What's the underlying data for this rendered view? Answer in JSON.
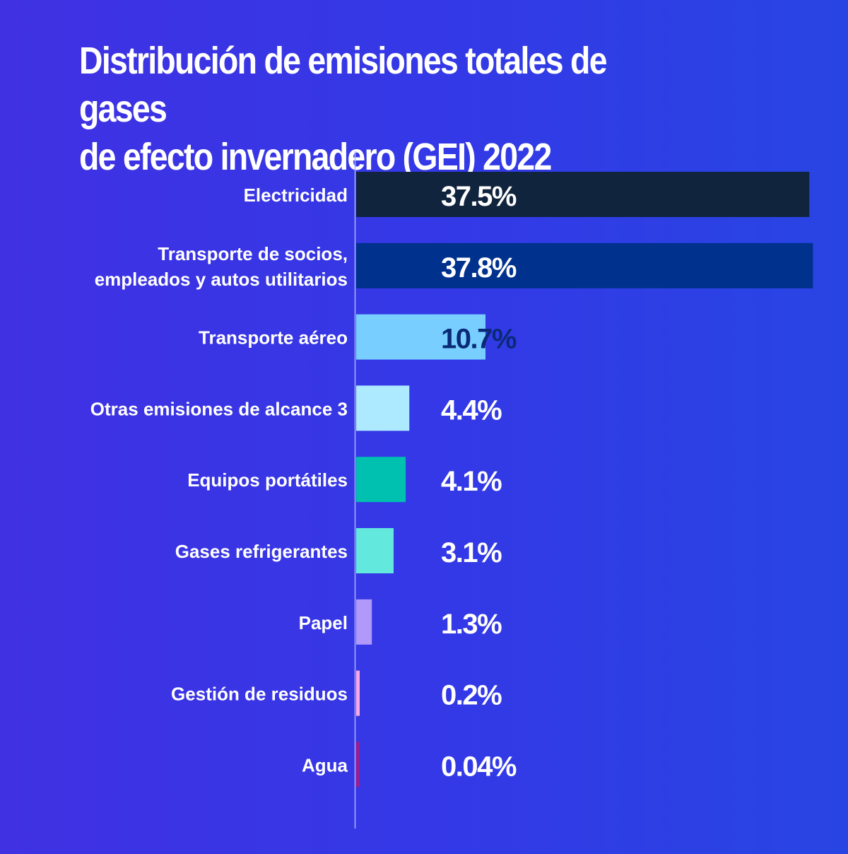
{
  "chart_data": {
    "type": "bar",
    "orientation": "horizontal",
    "title_lines": [
      "Distribución de emisiones totales de gases",
      "de efecto invernadero (GEI) 2022"
    ],
    "categories": [
      [
        "Electricidad"
      ],
      [
        "Transporte de socios,",
        "empleados y autos utilitarios"
      ],
      [
        "Transporte aéreo"
      ],
      [
        "Otras emisiones de alcance 3"
      ],
      [
        "Equipos portátiles"
      ],
      [
        "Gases refrigerantes"
      ],
      [
        "Papel"
      ],
      [
        "Gestión de residuos"
      ],
      [
        "Agua"
      ]
    ],
    "values": [
      37.5,
      37.8,
      10.7,
      4.4,
      4.1,
      3.1,
      1.3,
      0.2,
      0.04
    ],
    "value_labels": [
      "37.5%",
      "37.8%",
      "10.7%",
      "4.4%",
      "4.1%",
      "3.1%",
      "1.3%",
      "0.2%",
      "0.04%"
    ],
    "bar_colors": [
      "#10243d",
      "#00318c",
      "#78cfff",
      "#ade9ff",
      "#00c0b0",
      "#62e8dc",
      "#b099f9",
      "#fba7e0",
      "#9b1d8e"
    ],
    "value_label_colors": [
      "#ffffff",
      "#ffffff",
      "#0a2a78",
      "#ffffff",
      "#ffffff",
      "#ffffff",
      "#ffffff",
      "#ffffff",
      "#ffffff"
    ],
    "xlabel": "",
    "ylabel": "",
    "grid": false,
    "legend": "none"
  }
}
